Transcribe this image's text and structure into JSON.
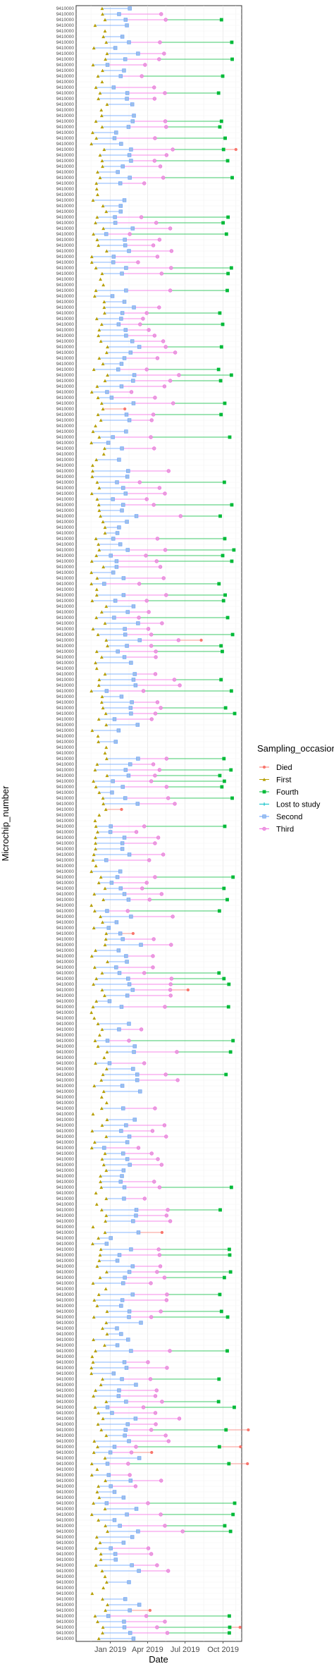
{
  "chart_data": {
    "type": "scatter",
    "title": "",
    "xlabel": "Date",
    "ylabel": "Microchip_number",
    "x_ticks": [
      "Jan 2019",
      "Apr 2019",
      "Jul 2019",
      "Oct 2019"
    ],
    "x_tick_dates": [
      "2019-01-01",
      "2019-04-01",
      "2019-07-01",
      "2019-10-01"
    ],
    "xlim": [
      "2018-10-10",
      "2019-11-15"
    ],
    "y_category_count": 290,
    "y_tick_label_pattern": "9410000",
    "grid": true,
    "legend": {
      "title": "Sampling_occasion",
      "placement": "right",
      "entries": [
        {
          "name": "Died",
          "color": "#F8766D",
          "shape": "circle"
        },
        {
          "name": "First",
          "color": "#B79F00",
          "shape": "triangle"
        },
        {
          "name": "Fourth",
          "color": "#00BA38",
          "shape": "square-filled"
        },
        {
          "name": "Lost to study",
          "color": "#00BFC4",
          "shape": "plus"
        },
        {
          "name": "Second",
          "color": "#619CFF",
          "shape": "square-open"
        },
        {
          "name": "Third",
          "color": "#F564E3",
          "shape": "circle-open"
        }
      ]
    },
    "series_note": "Each row is one microchip; points at sampling dates joined by a line coloured by sampling occasion."
  }
}
